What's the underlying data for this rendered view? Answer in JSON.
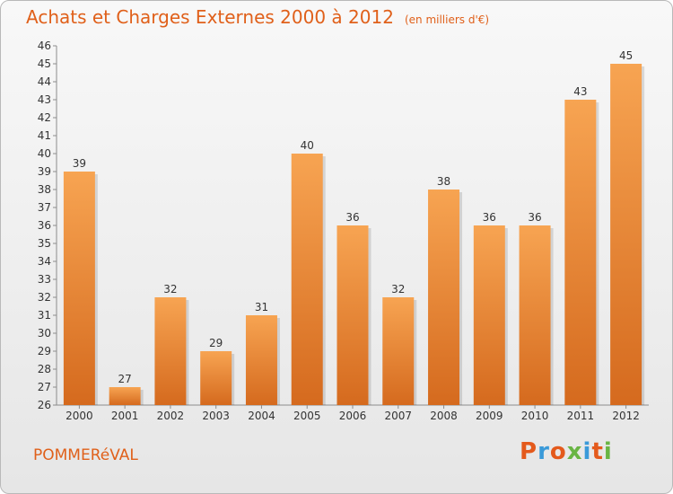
{
  "header": {
    "title": "Achats et Charges Externes 2000 à 2012",
    "subtitle": "(en milliers d'€)"
  },
  "footer": {
    "commune": "POMMERéVAL",
    "brand": "Proxiti"
  },
  "colors": {
    "title": "#e0601a",
    "bar_top": "#f7a452",
    "bar_bottom": "#d56a1e",
    "brand_letters": [
      "#e45a1c",
      "#3a9ad9",
      "#e45a1c",
      "#69b544",
      "#3a9ad9",
      "#e45a1c",
      "#69b544"
    ]
  },
  "chart_data": {
    "type": "bar",
    "title": "Achats et Charges Externes 2000 à 2012",
    "subtitle": "(en milliers d'€)",
    "categories": [
      "2000",
      "2001",
      "2002",
      "2003",
      "2004",
      "2005",
      "2006",
      "2007",
      "2008",
      "2009",
      "2010",
      "2011",
      "2012"
    ],
    "values": [
      39,
      27,
      32,
      29,
      31,
      40,
      36,
      32,
      38,
      36,
      36,
      43,
      45
    ],
    "ylim": [
      26,
      46
    ],
    "yticks": [
      26,
      27,
      28,
      29,
      30,
      31,
      32,
      33,
      34,
      35,
      36,
      37,
      38,
      39,
      40,
      41,
      42,
      43,
      44,
      45,
      46
    ],
    "xlabel": "",
    "ylabel": "",
    "grid": false,
    "data_labels": true
  }
}
